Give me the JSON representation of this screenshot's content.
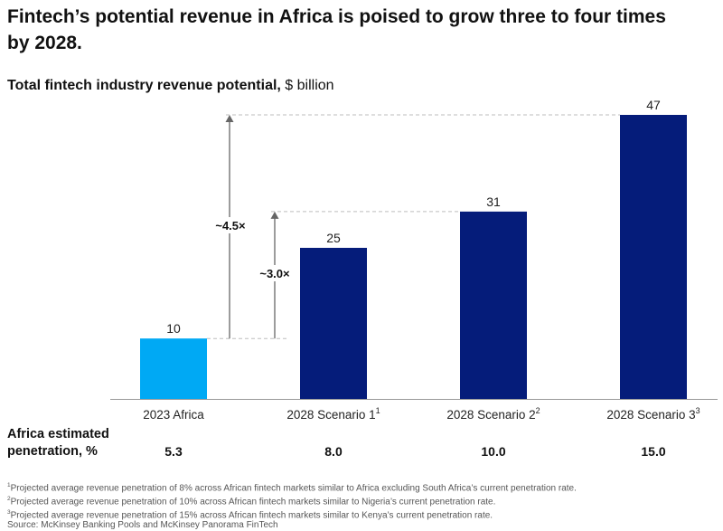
{
  "title_line1": "Fintech’s potential revenue in Africa is poised to grow three to four times",
  "title_line2": "by 2028.",
  "subtitle_bold": "Total fintech industry revenue potential,",
  "subtitle_unit": " $ billion",
  "chart_data": {
    "type": "bar",
    "title": "Total fintech industry revenue potential, $ billion",
    "categories": [
      "2023 Africa",
      "2028 Scenario 1",
      "2028 Scenario 2",
      "2028 Scenario 3"
    ],
    "category_superscripts": [
      "",
      "1",
      "2",
      "3"
    ],
    "values": [
      10,
      25,
      31,
      47
    ],
    "bar_colors": [
      "#00a9f4",
      "#051c7a",
      "#051c7a",
      "#051c7a"
    ],
    "ylim": [
      0,
      47
    ],
    "grid": false,
    "annotations": [
      {
        "label": "~4.5×",
        "from": 10,
        "to": 47
      },
      {
        "label": "~3.0×",
        "from": 10,
        "to": 31
      }
    ]
  },
  "penetration": {
    "label_line1": "Africa estimated",
    "label_line2": "penetration, %",
    "values": [
      "5.3",
      "8.0",
      "10.0",
      "15.0"
    ]
  },
  "footnotes": [
    {
      "mark": "1",
      "text": "Projected average revenue penetration of 8% across African fintech markets similar to Africa excluding South Africa’s current penetration rate."
    },
    {
      "mark": "2",
      "text": "Projected average revenue penetration of 10% across African fintech markets similar to Nigeria’s current penetration rate."
    },
    {
      "mark": "3",
      "text": "Projected average revenue penetration of 15% across African fintech markets similar to Kenya’s current penetration rate."
    },
    {
      "mark": "",
      "text": "Source: McKinsey Banking Pools and McKinsey Panorama FinTech"
    }
  ],
  "colors": {
    "accent_light": "#00a9f4",
    "accent_dark": "#051c7a",
    "axis": "#999999",
    "arrow": "#666666"
  }
}
